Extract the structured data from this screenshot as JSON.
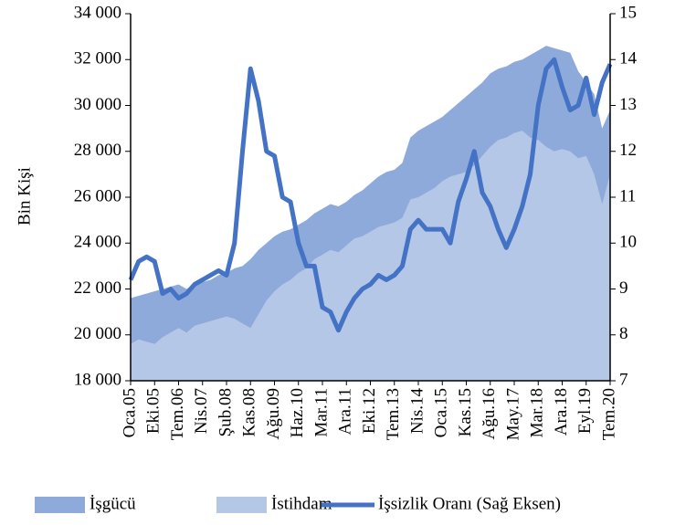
{
  "chart_data": {
    "type": "area-line",
    "ylabel": "Bin Kişi",
    "categories": [
      "Oca.05",
      null,
      null,
      "Eki.05",
      null,
      null,
      "Tem.06",
      null,
      null,
      "Nis.07",
      null,
      null,
      "Şub.08",
      null,
      null,
      "Kas.08",
      null,
      null,
      "Ağu.09",
      null,
      null,
      "Haz.10",
      null,
      null,
      "Mar.11",
      null,
      null,
      "Ara.11",
      null,
      null,
      "Eki.12",
      null,
      null,
      "Tem.13",
      null,
      null,
      "Nis.14",
      null,
      null,
      "Oca.15",
      null,
      null,
      "Kas.15",
      null,
      null,
      "Ağu.16",
      null,
      null,
      "May.17",
      null,
      null,
      "Mar.18",
      null,
      null,
      "Ara.18",
      null,
      null,
      "Eyl.19",
      null,
      null,
      "Tem.20"
    ],
    "series": [
      {
        "name": "İşgücü",
        "color": "#8eaadb",
        "kind": "area",
        "values": [
          21600,
          21700,
          21800,
          21900,
          22000,
          22100,
          22200,
          22000,
          22200,
          22300,
          22400,
          22600,
          22700,
          22900,
          23000,
          23300,
          23700,
          24000,
          24300,
          24500,
          24600,
          24800,
          25000,
          25300,
          25500,
          25700,
          25600,
          25800,
          26100,
          26300,
          26600,
          26900,
          27100,
          27200,
          27500,
          28600,
          28900,
          29100,
          29300,
          29500,
          29800,
          30100,
          30400,
          30700,
          31000,
          31400,
          31600,
          31700,
          31900,
          32000,
          32200,
          32400,
          32600,
          32500,
          32400,
          32300,
          31500,
          31000,
          30500,
          29000,
          29800
        ]
      },
      {
        "name": "İstihdam",
        "color": "#b4c7e7",
        "kind": "area",
        "values": [
          19600,
          19800,
          19700,
          19600,
          19900,
          20100,
          20300,
          20100,
          20400,
          20500,
          20600,
          20700,
          20800,
          20700,
          20500,
          20300,
          20900,
          21500,
          21900,
          22200,
          22400,
          22700,
          22900,
          23300,
          23500,
          23700,
          23600,
          23900,
          24200,
          24300,
          24500,
          24700,
          24800,
          24900,
          25100,
          25900,
          26000,
          26200,
          26400,
          26700,
          26900,
          27000,
          27100,
          27400,
          27800,
          28200,
          28500,
          28600,
          28800,
          28900,
          28600,
          28500,
          28200,
          28000,
          28100,
          28000,
          27700,
          27800,
          27000,
          25700,
          27000
        ]
      },
      {
        "name": "İşsizlik Oranı (Sağ Eksen)",
        "color": "#4472c4",
        "kind": "line",
        "axis": "y2",
        "values": [
          9.2,
          9.6,
          9.7,
          9.6,
          8.9,
          9.0,
          8.8,
          8.9,
          9.1,
          9.2,
          9.3,
          9.4,
          9.3,
          10.0,
          12.0,
          13.8,
          13.1,
          12.0,
          11.9,
          11.0,
          10.9,
          10.0,
          9.5,
          9.5,
          8.6,
          8.5,
          8.1,
          8.5,
          8.8,
          9.0,
          9.1,
          9.3,
          9.2,
          9.3,
          9.5,
          10.3,
          10.5,
          10.3,
          10.3,
          10.3,
          10.0,
          10.9,
          11.4,
          12.0,
          11.1,
          10.8,
          10.3,
          9.9,
          10.3,
          10.8,
          11.5,
          13.0,
          13.8,
          14.0,
          13.4,
          12.9,
          13.0,
          13.6,
          12.8,
          13.5,
          13.9
        ]
      }
    ],
    "ylim": [
      18000,
      34000
    ],
    "yticks": [
      {
        "value": 18000,
        "label": "18 000"
      },
      {
        "value": 20000,
        "label": "20 000"
      },
      {
        "value": 22000,
        "label": "22 000"
      },
      {
        "value": 24000,
        "label": "24 000"
      },
      {
        "value": 26000,
        "label": "26 000"
      },
      {
        "value": 28000,
        "label": "28 000"
      },
      {
        "value": 30000,
        "label": "30 000"
      },
      {
        "value": 32000,
        "label": "32 000"
      },
      {
        "value": 34000,
        "label": "34 000"
      }
    ],
    "y2lim": [
      7,
      15
    ],
    "y2ticks": [
      7,
      8,
      9,
      10,
      11,
      12,
      13,
      14,
      15
    ],
    "legend": "bottom"
  }
}
